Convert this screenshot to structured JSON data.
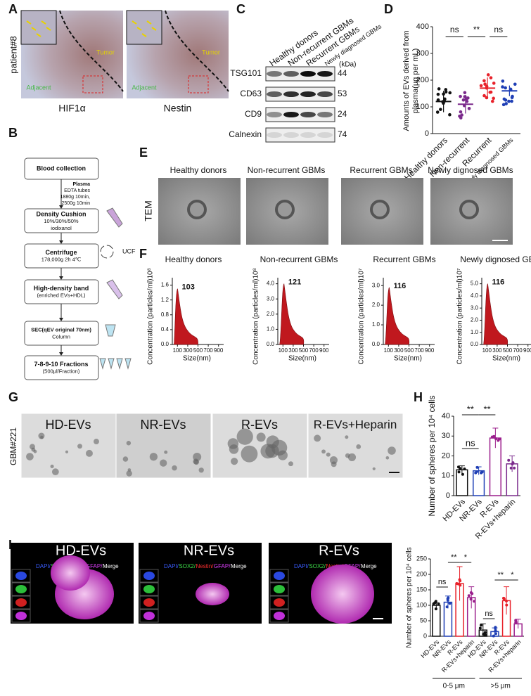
{
  "A": {
    "label": "A",
    "row_label": "patient#8",
    "images": [
      {
        "caption": "HIF1α",
        "tumor": "Tumor",
        "adjacent": "Adjacent"
      },
      {
        "caption": "Nestin",
        "tumor": "Tumor",
        "adjacent": "Adjacent"
      }
    ]
  },
  "B": {
    "label": "B",
    "steps": [
      {
        "title": "Blood collection",
        "lines": []
      },
      {
        "title": "Density Cushion",
        "lines": [
          "10%/30%/50%",
          "iodixanol"
        ]
      },
      {
        "title": "Centrifuge",
        "lines": [
          "178,000g 2h 4℃"
        ]
      },
      {
        "title": "High-density band",
        "lines": [
          "(enriched EVs+HDL)"
        ]
      },
      {
        "title": "SEC(qEV original 70nm)",
        "lines": [
          "Column"
        ]
      },
      {
        "title": "7-8-9-10 Fractions",
        "lines": [
          "(500μl/Fraction)"
        ]
      }
    ],
    "plasma_note": [
      "Plasma",
      "EDTA tubes",
      "1880g 10min,",
      "2500g 10min"
    ],
    "ucf": "UCF"
  },
  "C": {
    "label": "C",
    "lanes": [
      "Healthy donors",
      "Non-recurrent GBMs",
      "Recurrent GBMs",
      "Newly diagnosed GBMs"
    ],
    "unit": "(kDa)",
    "bands": [
      {
        "name": "TSG101",
        "kda": "44"
      },
      {
        "name": "CD63",
        "kda": "53"
      },
      {
        "name": "CD9",
        "kda": "24"
      },
      {
        "name": "Calnexin",
        "kda": "74"
      }
    ]
  },
  "D": {
    "label": "D",
    "chart": {
      "type": "dot",
      "ylabel": [
        "Amounts of EVs derived from",
        "plasma(μg per mL)"
      ],
      "categories": [
        "Healthy donors",
        "Non-recurrent",
        "Recurrent",
        "Newly diagnosed GBMs"
      ],
      "values": [
        120,
        110,
        170,
        160
      ],
      "errors": [
        40,
        35,
        40,
        20
      ],
      "colors": [
        "#111111",
        "#7b2a8c",
        "#e8212a",
        "#1f3fb5"
      ],
      "ylim": [
        0,
        400
      ],
      "yticks": [
        0,
        100,
        200,
        300,
        400
      ],
      "significance": [
        "ns",
        "**",
        "ns"
      ]
    }
  },
  "E": {
    "label": "E",
    "row_label": "TEM",
    "titles": [
      "Healthy donors",
      "Non-recurrent GBMs",
      "Recurrent GBMs",
      "Newly dignosed GBMs"
    ]
  },
  "F": {
    "label": "F",
    "xlabel": "Size(nm)",
    "plots": [
      {
        "title": "Healthy donors",
        "ylabel": "Concentration (particles/ml)10⁸",
        "peak": 103,
        "peak_height": 1.5,
        "color": "#c0181e",
        "ylim": [
          0,
          1.8
        ],
        "yticks": [
          {
            "value": 0,
            "label": "0.0"
          },
          {
            "value": 0.4,
            "label": "0.4"
          },
          {
            "value": 0.8,
            "label": "0.8"
          },
          {
            "value": 1.2,
            "label": "1.2"
          },
          {
            "value": 1.6,
            "label": "1.6"
          }
        ],
        "xlim": [
          0,
          1000
        ],
        "xticks": [
          100,
          300,
          500,
          700,
          900
        ]
      },
      {
        "title": "Non-recurrent GBMs",
        "ylabel": "Concentration (particles/ml)10⁸",
        "peak": 121,
        "peak_height": 4.0,
        "color": "#c0181e",
        "ylim": [
          0,
          4.4
        ],
        "yticks": [
          {
            "value": 0,
            "label": "0.0"
          },
          {
            "value": 1,
            "label": "1.0"
          },
          {
            "value": 2,
            "label": "2.0"
          },
          {
            "value": 3,
            "label": "3.0"
          },
          {
            "value": 4,
            "label": "4.0"
          }
        ],
        "xlim": [
          0,
          1000
        ],
        "xticks": [
          100,
          300,
          500,
          700,
          900
        ]
      },
      {
        "title": "Recurrent GBMs",
        "ylabel": "Concentration (particles/ml)10⁷",
        "peak": 116,
        "peak_height": 2.9,
        "color": "#c0181e",
        "ylim": [
          0,
          3.4
        ],
        "yticks": [
          {
            "value": 0,
            "label": "0.0"
          },
          {
            "value": 1,
            "label": "1.0"
          },
          {
            "value": 2,
            "label": "2.0"
          },
          {
            "value": 3,
            "label": "3.0"
          }
        ],
        "xlim": [
          0,
          1000
        ],
        "xticks": [
          100,
          300,
          500,
          700,
          900
        ]
      },
      {
        "title": "Newly dignosed GBMs",
        "ylabel": "Concentration (particles/ml)10⁷",
        "peak": 116,
        "peak_height": 5.0,
        "color": "#c0181e",
        "ylim": [
          0,
          5.5
        ],
        "yticks": [
          {
            "value": 0,
            "label": "0.0"
          },
          {
            "value": 1,
            "label": "1.0"
          },
          {
            "value": 2,
            "label": "2.0"
          },
          {
            "value": 3,
            "label": "3.0"
          },
          {
            "value": 4,
            "label": "4.0"
          },
          {
            "value": 5,
            "label": "5.0"
          }
        ],
        "xlim": [
          0,
          1000
        ],
        "xticks": [
          100,
          300,
          500,
          700,
          900
        ]
      }
    ]
  },
  "G": {
    "label": "G",
    "row_label": "GBM#221",
    "titles": [
      "HD-EVs",
      "NR-EVs",
      "R-EVs",
      "R-EVs+Heparin"
    ]
  },
  "H": {
    "label": "H",
    "chart": {
      "type": "bar",
      "ylabel": "Number of spheres per 10⁴ cells",
      "categories": [
        "HD-EVs",
        "NR-EVs",
        "R-EVs",
        "R-EVs+heparin"
      ],
      "values": [
        13,
        12.5,
        29,
        16
      ],
      "errors": [
        2,
        2,
        5,
        4
      ],
      "colors": [
        "#111111",
        "#1f3fb5",
        "#9b1f8c",
        "#7b2a8c"
      ],
      "ylim": [
        0,
        40
      ],
      "yticks": [
        0,
        10,
        20,
        30,
        40
      ],
      "significance": [
        "**",
        "**",
        "ns"
      ]
    }
  },
  "I": {
    "label": "I",
    "titles": [
      "HD-EVs",
      "NR-EVs",
      "R-EVs"
    ],
    "stain": [
      "DAPI/",
      "SOX2/",
      "Nestin/",
      "GFAP/",
      "Merge"
    ],
    "chart": {
      "type": "bar",
      "ylabel": "Number of spheres per 10⁴ cells",
      "categories": [
        "HD-EVs",
        "NR-EVs",
        "R-EVs",
        "R-EVs+heparin",
        "HD-EVs",
        "NR-EVs",
        "R-EVs",
        "R-EVs+heparin"
      ],
      "groups": [
        "0-5 μm",
        ">5 μm"
      ],
      "values": [
        100,
        110,
        170,
        125,
        20,
        15,
        115,
        40
      ],
      "errors": [
        8,
        20,
        55,
        35,
        20,
        12,
        45,
        15
      ],
      "colors": [
        "#111111",
        "#1f3fb5",
        "#e8212a",
        "#9b1f8c",
        "#111111",
        "#1f3fb5",
        "#e8212a",
        "#9b1f8c"
      ],
      "ylim": [
        0,
        250
      ],
      "yticks": [
        0,
        50,
        100,
        150,
        200,
        250
      ],
      "significance": [
        "ns",
        "**",
        "*",
        "ns",
        "**",
        "*"
      ]
    }
  }
}
